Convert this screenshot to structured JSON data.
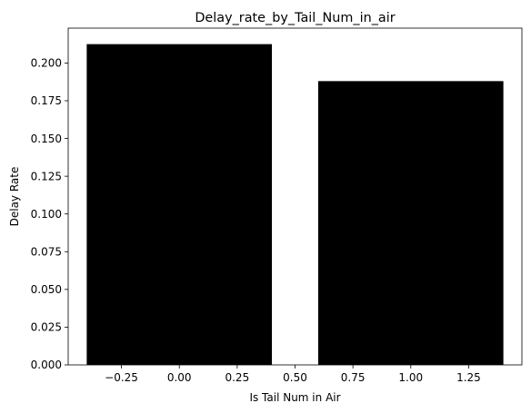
{
  "chart_data": {
    "type": "bar",
    "title": "Delay_rate_by_Tail_Num_in_air",
    "xlabel": "Is Tail Num in Air",
    "ylabel": "Delay Rate",
    "x": [
      0,
      1
    ],
    "values": [
      0.2125,
      0.188
    ],
    "bar_width": 0.8,
    "bar_color": "#000000",
    "xlim": [
      -0.48,
      1.48
    ],
    "ylim": [
      0,
      0.2231
    ],
    "xticks": [
      -0.25,
      0.0,
      0.25,
      0.5,
      0.75,
      1.0,
      1.25
    ],
    "xtick_labels": [
      "−0.25",
      "0.00",
      "0.25",
      "0.50",
      "0.75",
      "1.00",
      "1.25"
    ],
    "yticks": [
      0,
      0.025,
      0.05,
      0.075,
      0.1,
      0.125,
      0.15,
      0.175,
      0.2
    ],
    "ytick_labels": [
      "0.000",
      "0.025",
      "0.050",
      "0.075",
      "0.100",
      "0.125",
      "0.150",
      "0.175",
      "0.200"
    ],
    "grid": false,
    "legend": "none"
  }
}
